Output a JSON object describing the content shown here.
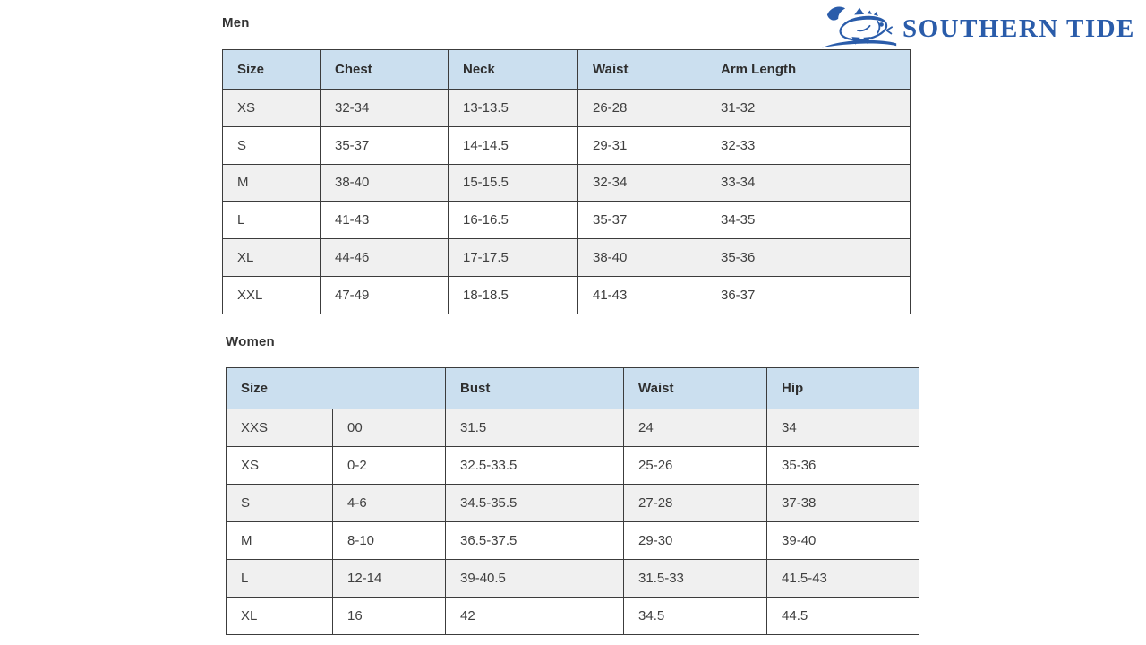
{
  "logo": {
    "brand": "SOUTHERN TIDE",
    "icon": "southern-tide-fish-icon"
  },
  "men": {
    "heading": "Men",
    "columns": [
      "Size",
      "Chest",
      "Neck",
      "Waist",
      "Arm Length"
    ],
    "rows": [
      [
        "XS",
        "32-34",
        "13-13.5",
        "26-28",
        "31-32"
      ],
      [
        "S",
        "35-37",
        "14-14.5",
        "29-31",
        "32-33"
      ],
      [
        "M",
        "38-40",
        "15-15.5",
        "32-34",
        "33-34"
      ],
      [
        "L",
        "41-43",
        "16-16.5",
        "35-37",
        "34-35"
      ],
      [
        "XL",
        "44-46",
        "17-17.5",
        "38-40",
        "35-36"
      ],
      [
        "XXL",
        "47-49",
        "18-18.5",
        "41-43",
        "36-37"
      ]
    ]
  },
  "women": {
    "heading": "Women",
    "columns": [
      "Size",
      "Bust",
      "Waist",
      "Hip"
    ],
    "rows": [
      [
        "XXS",
        "00",
        "31.5",
        "24",
        "34"
      ],
      [
        "XS",
        "0-2",
        "32.5-33.5",
        "25-26",
        "35-36"
      ],
      [
        "S",
        "4-6",
        "34.5-35.5",
        "27-28",
        "37-38"
      ],
      [
        "M",
        "8-10",
        "36.5-37.5",
        "29-30",
        "39-40"
      ],
      [
        "L",
        "12-14",
        "39-40.5",
        "31.5-33",
        "41.5-43"
      ],
      [
        "XL",
        "16",
        "42",
        "34.5",
        "44.5"
      ]
    ]
  },
  "colors": {
    "header_bg": "#cbdfef",
    "row_alt_bg": "#f0f0f0",
    "border": "#3c3c3c",
    "text": "#3f3f3f",
    "brand_blue": "#2a5caa"
  }
}
